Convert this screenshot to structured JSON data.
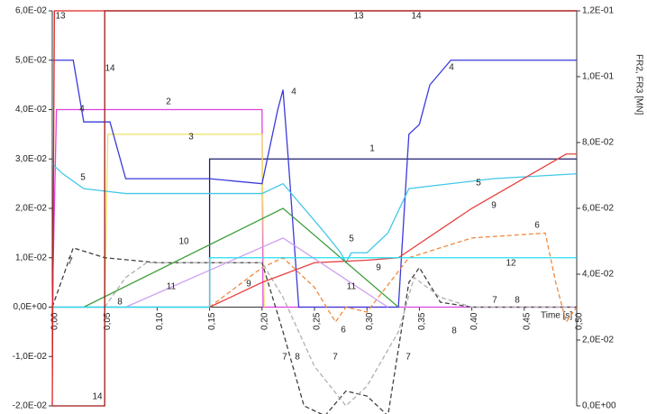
{
  "chart_data": {
    "type": "line",
    "x_label": "Time [s]",
    "y2_label": "FR2, FR3 [MN]",
    "xlim": [
      0,
      0.5
    ],
    "ylim": [
      -0.02,
      0.06
    ],
    "y2lim": [
      0,
      0.12
    ],
    "xticks": [
      {
        "value": 0,
        "label": "0,00"
      },
      {
        "value": 0.05,
        "label": "0,05"
      },
      {
        "value": 0.1,
        "label": "0,10"
      },
      {
        "value": 0.15,
        "label": "0,15"
      },
      {
        "value": 0.2,
        "label": "0,20"
      },
      {
        "value": 0.25,
        "label": "0,25"
      },
      {
        "value": 0.3,
        "label": "0,30"
      },
      {
        "value": 0.35,
        "label": "0,35"
      },
      {
        "value": 0.4,
        "label": "0,40"
      },
      {
        "value": 0.45,
        "label": "0,45"
      },
      {
        "value": 0.5,
        "label": "0,50"
      }
    ],
    "yticks": [
      {
        "value": -0.02,
        "label": "-2,0E-02"
      },
      {
        "value": -0.01,
        "label": "-1,0E-02"
      },
      {
        "value": 0,
        "label": "0,0E+00"
      },
      {
        "value": 0.01,
        "label": "1,0E-02"
      },
      {
        "value": 0.02,
        "label": "2,0E-02"
      },
      {
        "value": 0.03,
        "label": "3,0E-02"
      },
      {
        "value": 0.04,
        "label": "4,0E-02"
      },
      {
        "value": 0.05,
        "label": "5,0E-02"
      },
      {
        "value": 0.06,
        "label": "6,0E-02"
      }
    ],
    "y2ticks": [
      {
        "value": 0,
        "label": "0,0E+00"
      },
      {
        "value": 0.02,
        "label": "2,0E-02"
      },
      {
        "value": 0.04,
        "label": "4,0E-02"
      },
      {
        "value": 0.06,
        "label": "6,0E-02"
      },
      {
        "value": 0.08,
        "label": "8,0E-02"
      },
      {
        "value": 0.1,
        "label": "1,0E-01"
      },
      {
        "value": 0.12,
        "label": "1,2E-01"
      }
    ],
    "series": [
      {
        "name": "1",
        "color": "#1f1f6e",
        "x": [
          0,
          0.15,
          0.15,
          0.5
        ],
        "values": [
          0,
          0,
          0.03,
          0.03
        ]
      },
      {
        "name": "2",
        "color": "#e040e0",
        "x": [
          0,
          0.004,
          0.2,
          0.201,
          0.5
        ],
        "values": [
          0,
          0.04,
          0.04,
          0,
          0
        ]
      },
      {
        "name": "3",
        "color": "#f0e060",
        "x": [
          0.05,
          0.053,
          0.2,
          0.202
        ],
        "values": [
          0,
          0.035,
          0.035,
          0
        ]
      },
      {
        "name": "4",
        "color": "#3a3adc",
        "x": [
          0,
          0.02,
          0.03,
          0.055,
          0.07,
          0.15,
          0.2,
          0.215,
          0.22,
          0.225,
          0.235,
          0.33,
          0.34,
          0.35,
          0.36,
          0.38,
          0.5
        ],
        "values": [
          0.05,
          0.05,
          0.0375,
          0.0375,
          0.026,
          0.026,
          0.025,
          0.04,
          0.044,
          0.03,
          0,
          0,
          0.035,
          0.037,
          0.045,
          0.05,
          0.05
        ]
      },
      {
        "name": "5",
        "color": "#40c8e8",
        "x": [
          0,
          0.01,
          0.03,
          0.07,
          0.2,
          0.22,
          0.24,
          0.26,
          0.275,
          0.28,
          0.285,
          0.3,
          0.32,
          0.34,
          0.38,
          0.42,
          0.5
        ],
        "values": [
          0.029,
          0.027,
          0.024,
          0.023,
          0.023,
          0.025,
          0.02,
          0.015,
          0.011,
          0.009,
          0.011,
          0.011,
          0.015,
          0.024,
          0.025,
          0.026,
          0.027
        ]
      },
      {
        "name": "6",
        "color": "#f08a40",
        "dashed": true,
        "x": [
          0.15,
          0.2,
          0.22,
          0.25,
          0.27,
          0.28,
          0.3,
          0.34,
          0.4,
          0.47,
          0.48,
          0.49,
          0.5
        ],
        "values": [
          0,
          0.008,
          0.01,
          0.004,
          -0.003,
          0,
          -0.001,
          0.01,
          0.014,
          0.015,
          0.005,
          -0.003,
          0
        ]
      },
      {
        "name": "7",
        "color": "#404040",
        "dashed": true,
        "x": [
          0,
          0.02,
          0.05,
          0.1,
          0.2,
          0.22,
          0.24,
          0.26,
          0.28,
          0.3,
          0.32,
          0.34,
          0.35,
          0.37,
          0.4,
          0.5
        ],
        "values": [
          0,
          0.012,
          0.01,
          0.009,
          0.009,
          -0.005,
          -0.02,
          -0.022,
          -0.017,
          -0.018,
          -0.022,
          0.005,
          0.008,
          0.001,
          0,
          0
        ]
      },
      {
        "name": "8",
        "color": "#b0b0b0",
        "dashed": true,
        "x": [
          0.05,
          0.07,
          0.09,
          0.2,
          0.22,
          0.25,
          0.28,
          0.3,
          0.33,
          0.345,
          0.37,
          0.4,
          0.5
        ],
        "values": [
          0,
          0.006,
          0.009,
          0.009,
          0.002,
          -0.012,
          -0.02,
          -0.016,
          -0.005,
          0.006,
          0.002,
          0,
          0
        ]
      },
      {
        "name": "9",
        "color": "#e84040",
        "x": [
          0.15,
          0.2,
          0.25,
          0.3,
          0.33,
          0.4,
          0.49,
          0.5
        ],
        "values": [
          0,
          0.005,
          0.009,
          0.0095,
          0.01,
          0.02,
          0.031,
          0.031
        ]
      },
      {
        "name": "10",
        "color": "#40a040",
        "x": [
          0.03,
          0.22,
          0.33
        ],
        "values": [
          0,
          0.02,
          0
        ]
      },
      {
        "name": "11",
        "color": "#d0a0f0",
        "x": [
          0.07,
          0.22,
          0.32
        ],
        "values": [
          0,
          0.014,
          0
        ]
      },
      {
        "name": "12",
        "color": "#20e0f0",
        "x": [
          0,
          0.15,
          0.15,
          0.5
        ],
        "values": [
          0,
          0,
          0.01,
          0.01
        ]
      },
      {
        "name": "13",
        "color": "#e02020",
        "axis": "y2",
        "x": [
          0,
          0.002,
          0.5
        ],
        "values": [
          0,
          0.12,
          0.12
        ]
      },
      {
        "name": "14",
        "color": "#a01818",
        "axis": "y2",
        "x": [
          0,
          0.05,
          0.05,
          0.5
        ],
        "values": [
          0,
          0,
          0.12,
          0.12
        ]
      }
    ]
  }
}
